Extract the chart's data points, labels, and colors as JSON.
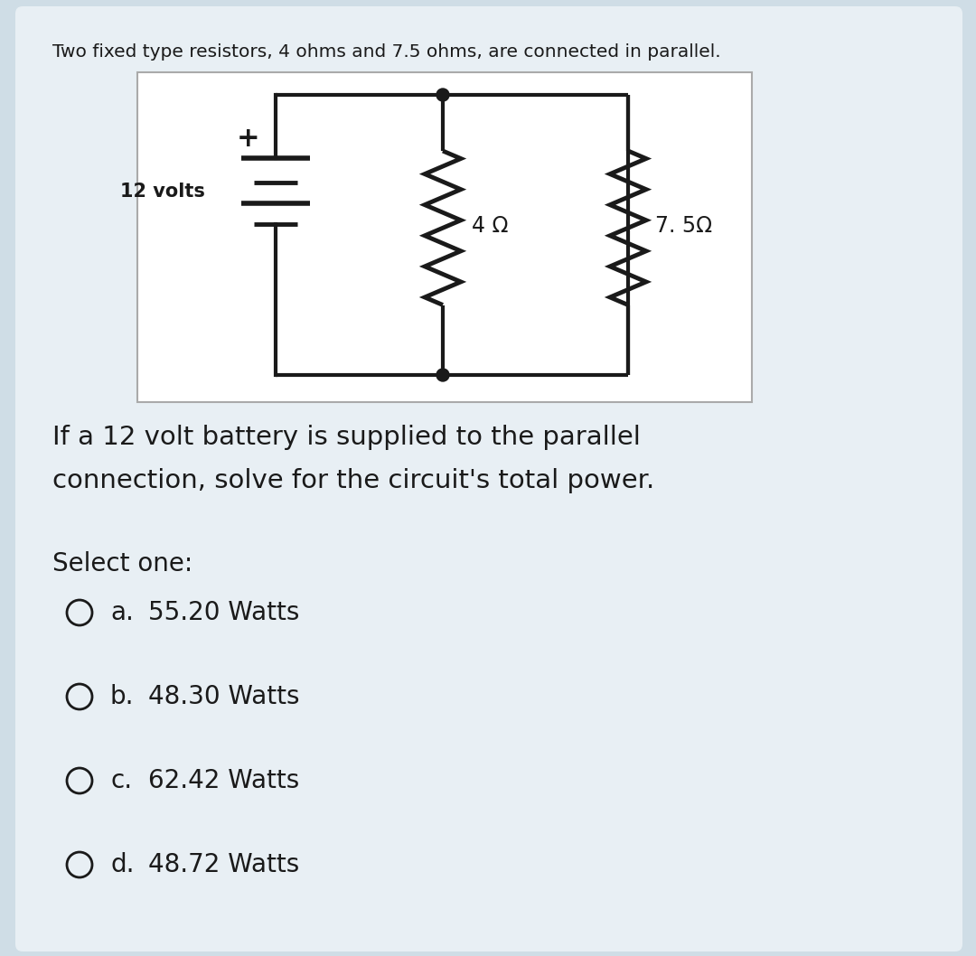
{
  "bg_color": "#cfdde6",
  "card_bg": "#e8eff4",
  "text_color": "#1a1a1a",
  "title_text": "Two fixed type resistors, 4 ohms and 7.5 ohms, are connected in parallel.",
  "question_line1": "If a 12 volt battery is supplied to the parallel",
  "question_line2": "connection, solve for the circuit's total power.",
  "select_text": "Select one:",
  "options": [
    {
      "label": "a.",
      "text": "55.20 Watts"
    },
    {
      "label": "b.",
      "text": "48.30 Watts"
    },
    {
      "label": "c.",
      "text": "62.42 Watts"
    },
    {
      "label": "d.",
      "text": "48.72 Watts"
    }
  ],
  "circuit_bg": "#ffffff",
  "circuit_line_color": "#1a1a1a",
  "voltage_label": "12 volts",
  "r1_label": "4 Ω",
  "r2_label": "7. 5Ω",
  "title_fontsize": 14.5,
  "question_fontsize": 21,
  "select_fontsize": 20,
  "option_fontsize": 20,
  "circuit_lw": 3.0,
  "batt_lw": 3.5
}
